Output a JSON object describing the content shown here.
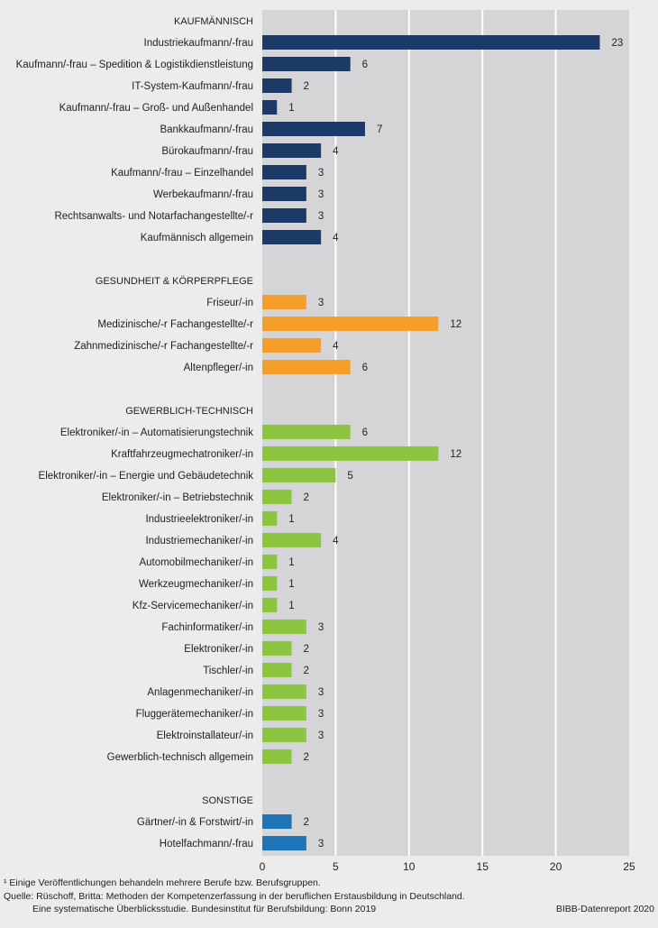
{
  "chart_data": {
    "type": "bar",
    "orientation": "horizontal",
    "xlim": [
      0,
      25
    ],
    "xticks": [
      "0",
      "5",
      "10",
      "15",
      "20",
      "25"
    ],
    "grid": true,
    "groups": [
      {
        "name": "KAUFMÄNNISCH",
        "color": "#1c3a68",
        "items": [
          {
            "label": "Industriekaufmann/-frau",
            "value": 23
          },
          {
            "label": "Kaufmann/-frau – Spedition & Logistikdienstleistung",
            "value": 6
          },
          {
            "label": "IT-System-Kaufmann/-frau",
            "value": 2
          },
          {
            "label": "Kaufmann/-frau – Groß- und Außenhandel",
            "value": 1
          },
          {
            "label": "Bankkaufmann/-frau",
            "value": 7
          },
          {
            "label": "Bürokaufmann/-frau",
            "value": 4
          },
          {
            "label": "Kaufmann/-frau – Einzelhandel",
            "value": 3
          },
          {
            "label": "Werbekaufmann/-frau",
            "value": 3
          },
          {
            "label": "Rechtsanwalts- und Notarfachangestellte/-r",
            "value": 3
          },
          {
            "label": "Kaufmännisch allgemein",
            "value": 4
          }
        ]
      },
      {
        "name": "GESUNDHEIT & KÖRPERPFLEGE",
        "color": "#f59f2a",
        "items": [
          {
            "label": "Friseur/-in",
            "value": 3
          },
          {
            "label": "Medizinische/-r Fachangestellte/-r",
            "value": 12
          },
          {
            "label": "Zahnmedizinische/-r Fachangestellte/-r",
            "value": 4
          },
          {
            "label": "Altenpfleger/-in",
            "value": 6
          }
        ]
      },
      {
        "name": "GEWERBLICH-TECHNISCH",
        "color": "#8cc540",
        "items": [
          {
            "label": "Elektroniker/-in – Automatisierungstechnik",
            "value": 6
          },
          {
            "label": "Kraftfahrzeugmechatroniker/-in",
            "value": 12
          },
          {
            "label": "Elektroniker/-in – Energie und Gebäudetechnik",
            "value": 5
          },
          {
            "label": "Elektroniker/-in – Betriebstechnik",
            "value": 2
          },
          {
            "label": "Industrieelektroniker/-in",
            "value": 1
          },
          {
            "label": "Industriemechaniker/-in",
            "value": 4
          },
          {
            "label": "Automobilmechaniker/-in",
            "value": 1
          },
          {
            "label": "Werkzeugmechaniker/-in",
            "value": 1
          },
          {
            "label": "Kfz-Servicemechaniker/-in",
            "value": 1
          },
          {
            "label": "Fachinformatiker/-in",
            "value": 3
          },
          {
            "label": "Elektroniker/-in",
            "value": 2
          },
          {
            "label": "Tischler/-in",
            "value": 2
          },
          {
            "label": "Anlagenmechaniker/-in",
            "value": 3
          },
          {
            "label": "Fluggerätemechaniker/-in",
            "value": 3
          },
          {
            "label": "Elektroinstallateur/-in",
            "value": 3
          },
          {
            "label": "Gewerblich-technisch allgemein",
            "value": 2
          }
        ]
      },
      {
        "name": "SONSTIGE",
        "color": "#1f73b7",
        "items": [
          {
            "label": "Gärtner/-in & Forstwirt/-in",
            "value": 2
          },
          {
            "label": "Hotelfachmann/-frau",
            "value": 3
          }
        ]
      }
    ]
  },
  "footer": {
    "note": "¹  Einige Veröffentlichungen behandeln mehrere Berufe bzw. Berufsgruppen.",
    "source_line1": "Quelle: Rüschoff, Britta: Methoden der Kompetenzerfassung in der beruflichen Erstausbildung in Deutschland.",
    "source_line2": "Eine systematische Überblicksstudie. Bundesinstitut für Berufsbildung: Bonn 2019",
    "credit": "BIBB-Datenreport 2020"
  }
}
